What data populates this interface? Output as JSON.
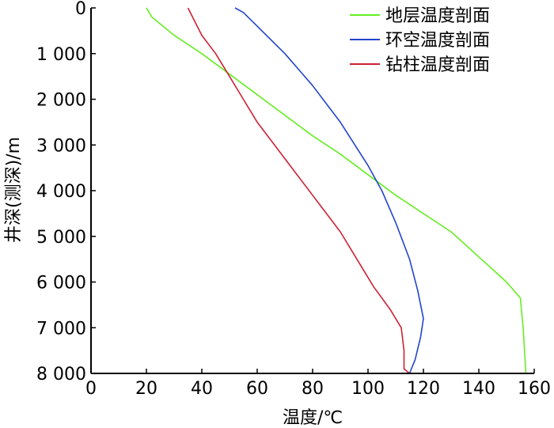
{
  "chart_data": {
    "type": "line",
    "title": "",
    "xlabel": "温度/℃",
    "ylabel": "井深(测深)/m",
    "xlim": [
      0,
      160
    ],
    "ylim": [
      0,
      8000
    ],
    "y_inverted": true,
    "x_ticks": [
      0,
      20,
      40,
      60,
      80,
      100,
      120,
      140,
      160
    ],
    "x_tick_labels": [
      "0",
      "20",
      "40",
      "60",
      "80",
      "100",
      "120",
      "140",
      "160"
    ],
    "y_ticks": [
      0,
      1000,
      2000,
      3000,
      4000,
      5000,
      6000,
      7000,
      8000
    ],
    "y_tick_labels": [
      "0",
      "1 000",
      "2 000",
      "3 000",
      "4 000",
      "5 000",
      "6 000",
      "7 000",
      "8 000"
    ],
    "grid": false,
    "legend_position": "top-right",
    "series": [
      {
        "name": "地层温度剖面",
        "color": "#66ee22",
        "points": [
          [
            20,
            0
          ],
          [
            22,
            200
          ],
          [
            30,
            600
          ],
          [
            40,
            1000
          ],
          [
            50,
            1450
          ],
          [
            60,
            1900
          ],
          [
            70,
            2350
          ],
          [
            80,
            2800
          ],
          [
            90,
            3200
          ],
          [
            100,
            3650
          ],
          [
            110,
            4100
          ],
          [
            120,
            4500
          ],
          [
            130,
            4900
          ],
          [
            140,
            5450
          ],
          [
            150,
            6000
          ],
          [
            155,
            6350
          ],
          [
            156,
            7000
          ],
          [
            157,
            8000
          ]
        ]
      },
      {
        "name": "环空温度剖面",
        "color": "#2244cc",
        "points": [
          [
            52,
            0
          ],
          [
            55,
            100
          ],
          [
            60,
            400
          ],
          [
            70,
            1000
          ],
          [
            80,
            1700
          ],
          [
            90,
            2500
          ],
          [
            100,
            3450
          ],
          [
            105,
            4000
          ],
          [
            110,
            4700
          ],
          [
            115,
            5500
          ],
          [
            118,
            6200
          ],
          [
            120,
            6800
          ],
          [
            119,
            7200
          ],
          [
            117,
            7700
          ],
          [
            115,
            8000
          ]
        ]
      },
      {
        "name": "钻柱温度剖面",
        "color": "#cc2233",
        "points": [
          [
            35,
            0
          ],
          [
            40,
            600
          ],
          [
            45,
            1000
          ],
          [
            50,
            1500
          ],
          [
            55,
            2000
          ],
          [
            60,
            2500
          ],
          [
            70,
            3300
          ],
          [
            80,
            4100
          ],
          [
            90,
            4900
          ],
          [
            97,
            5600
          ],
          [
            102,
            6100
          ],
          [
            108,
            6600
          ],
          [
            112,
            7000
          ],
          [
            113,
            7500
          ],
          [
            113,
            7900
          ],
          [
            115,
            8000
          ]
        ]
      }
    ]
  }
}
